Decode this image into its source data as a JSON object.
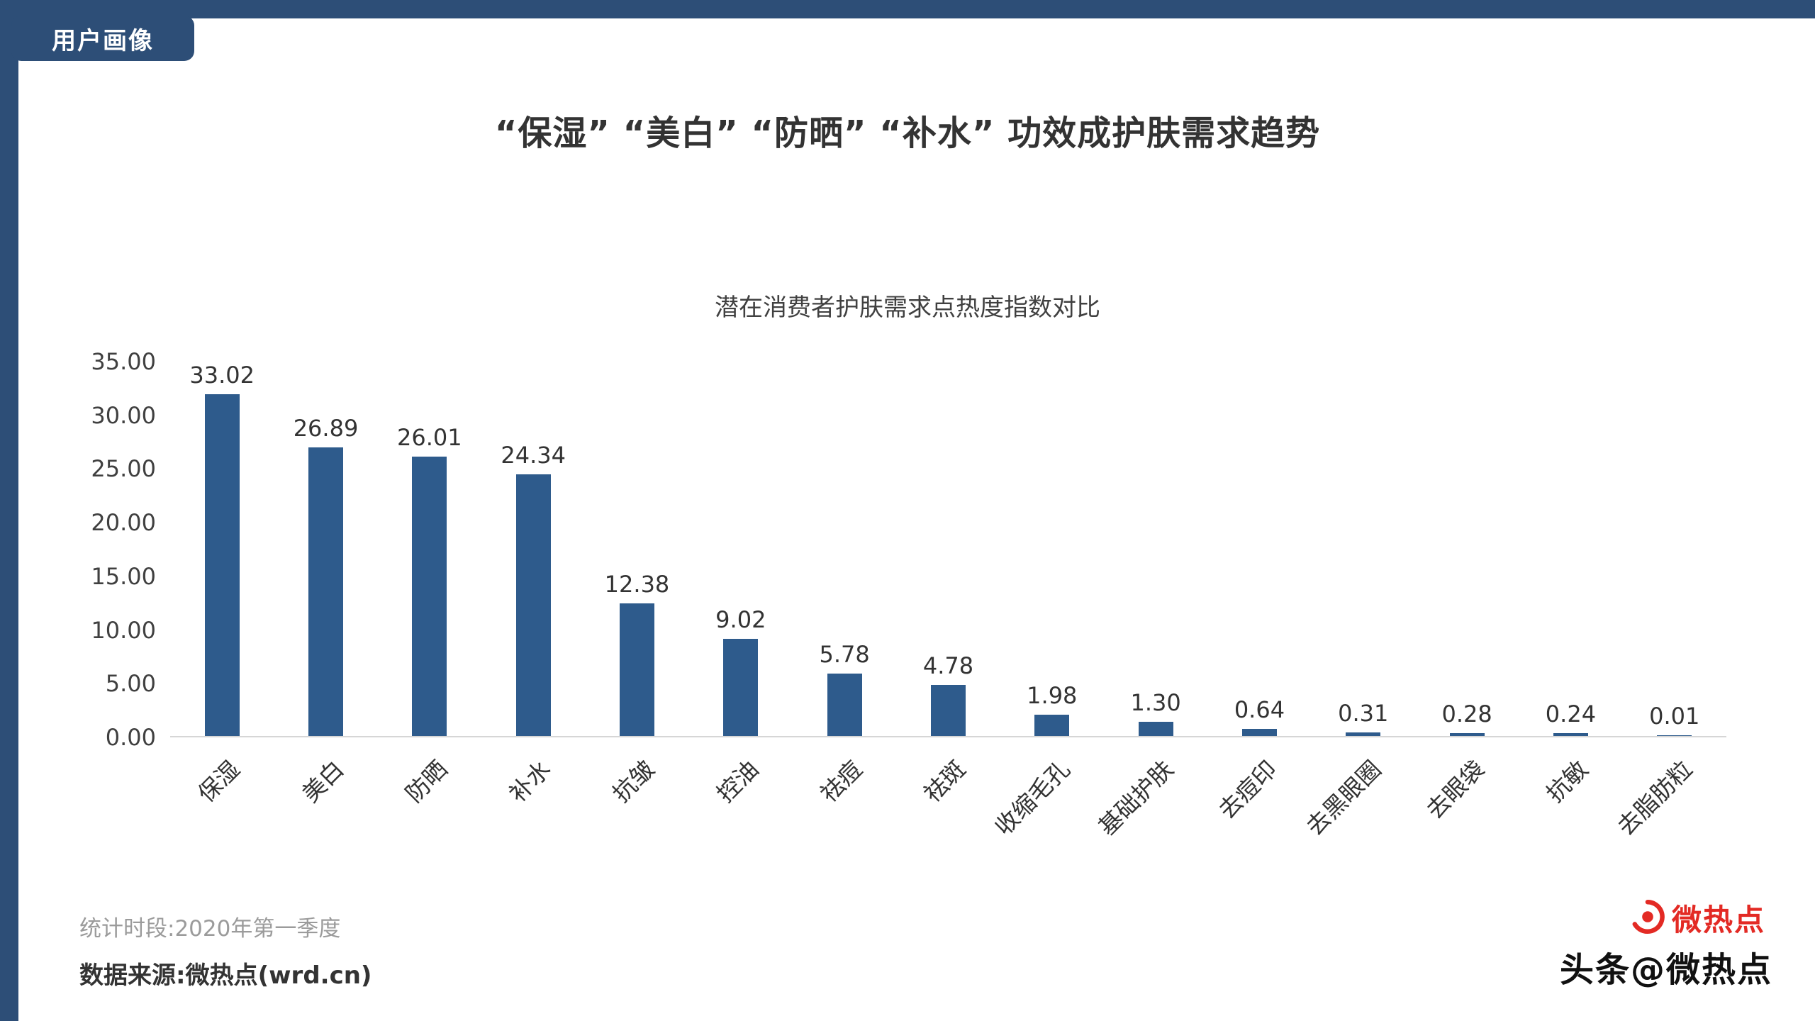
{
  "page": {
    "badge": "用户画像",
    "title": "“保湿” “美白” “防晒” “补水” 功效成护肤需求趋势",
    "footer": {
      "period": "统计时段:2020年第一季度",
      "source": "数据来源:微热点(wrd.cn)"
    },
    "watermark": {
      "brand_text": "微热点",
      "overlay_text": "头条@微热点"
    }
  },
  "colors": {
    "frame": "#2d4e77",
    "bar": "#2e5b8c",
    "brand_red": "#e32a24",
    "title_text": "#333333",
    "axis_text": "#404040"
  },
  "chart_data": {
    "type": "bar",
    "title": "潜在消费者护肤需求点热度指数对比",
    "categories": [
      "保湿",
      "美白",
      "防晒",
      "补水",
      "抗皱",
      "控油",
      "祛痘",
      "祛斑",
      "收缩毛孔",
      "基础护肤",
      "去痘印",
      "去黑眼圈",
      "去眼袋",
      "抗敏",
      "去脂肪粒"
    ],
    "values": [
      33.02,
      26.89,
      26.01,
      24.34,
      12.38,
      9.02,
      5.78,
      4.78,
      1.98,
      1.3,
      0.64,
      0.31,
      0.28,
      0.24,
      0.01
    ],
    "value_labels": [
      "33.02",
      "26.89",
      "26.01",
      "24.34",
      "12.38",
      "9.02",
      "5.78",
      "4.78",
      "1.98",
      "1.30",
      "0.64",
      "0.31",
      "0.28",
      "0.24",
      "0.01"
    ],
    "xlabel": "",
    "ylabel": "",
    "ylim": [
      0,
      35
    ],
    "ytick_step": 5,
    "ytick_format_decimals": 2,
    "grid": false,
    "legend": false,
    "bar_color": "#2e5b8c"
  }
}
